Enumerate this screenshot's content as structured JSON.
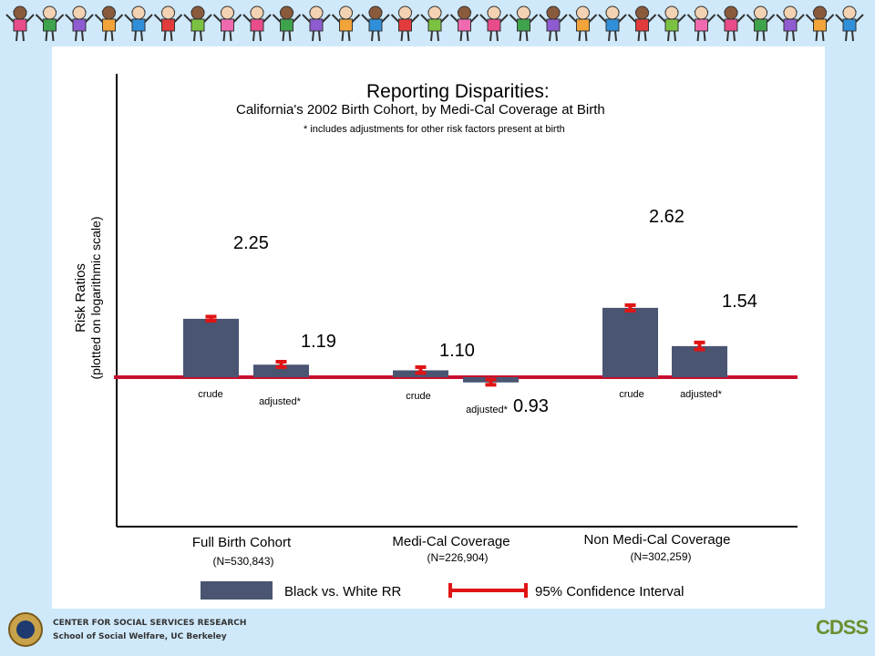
{
  "chart_data": {
    "type": "bar",
    "title": "Reporting Disparities:",
    "subtitle": "California's 2002 Birth Cohort, by Medi-Cal Coverage at Birth",
    "note": "* includes adjustments for other risk factors present at birth",
    "ylabel_line1": "Risk Ratios",
    "ylabel_line2": "(plotted on logarithmic scale)",
    "yscale": "log",
    "baseline": 1.0,
    "ylim": [
      0.55,
      3.0
    ],
    "groups": [
      {
        "name": "Full Birth Cohort",
        "n": "(N=530,843)",
        "bars": [
          {
            "label": "crude",
            "value": 2.25,
            "value_label": "2.25",
            "ci_low": 2.19,
            "ci_high": 2.32
          },
          {
            "label": "adjusted*",
            "value": 1.19,
            "value_label": "1.19",
            "ci_low": 1.15,
            "ci_high": 1.24
          }
        ]
      },
      {
        "name": "Medi-Cal Coverage",
        "n": "(N=226,904)",
        "bars": [
          {
            "label": "crude",
            "value": 1.1,
            "value_label": "1.10",
            "ci_low": 1.06,
            "ci_high": 1.15
          },
          {
            "label": "adjusted*",
            "value": 0.93,
            "value_label": "0.93",
            "ci_low": 0.9,
            "ci_high": 0.97
          }
        ]
      },
      {
        "name": "Non Medi-Cal Coverage",
        "n": "(N=302,259)",
        "bars": [
          {
            "label": "crude",
            "value": 2.62,
            "value_label": "2.62",
            "ci_low": 2.52,
            "ci_high": 2.72
          },
          {
            "label": "adjusted*",
            "value": 1.54,
            "value_label": "1.54",
            "ci_low": 1.47,
            "ci_high": 1.62
          }
        ]
      }
    ],
    "legend": {
      "bar": "Black vs. White RR",
      "ci": "95% Confidence Interval"
    },
    "colors": {
      "bar": "#4a5572",
      "ci": "#e01414",
      "baseline": "#c8102e"
    }
  },
  "footer": {
    "line1": "CENTER FOR SOCIAL SERVICES RESEARCH",
    "line2": "School of Social Welfare, UC Berkeley",
    "logo_right": "CDSS"
  }
}
